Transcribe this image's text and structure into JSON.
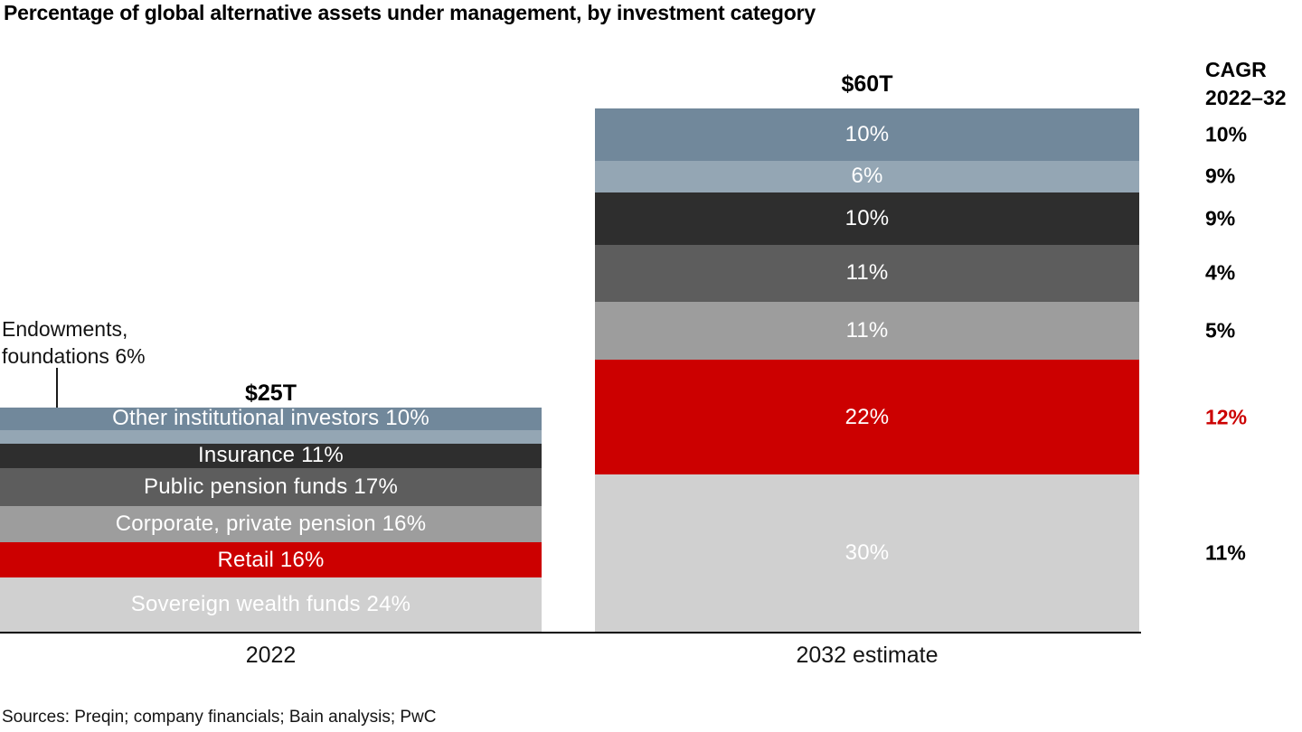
{
  "title": "Percentage of global alternative assets under management, by investment category",
  "sources": "Sources: Preqin; company financials; Bain analysis; PwC",
  "callout": {
    "line1": "Endowments,",
    "line2": "foundations 6%"
  },
  "cagr_header": {
    "line1": "CAGR",
    "line2": "2022–32"
  },
  "colors": {
    "slate": "#71889B",
    "light_slate": "#94A6B4",
    "charcoal": "#2E2E2E",
    "dark_gray": "#5D5D5D",
    "mid_gray": "#9D9D9D",
    "red": "#CC0000",
    "light_gray": "#D0D0D0",
    "axis": "#000000",
    "label_white": "#FFFFFF"
  },
  "chart_data": {
    "type": "bar",
    "subtype": "stacked-percentage-columns",
    "title": "Percentage of global alternative assets under management, by investment category",
    "categories": [
      "2022",
      "2032 estimate"
    ],
    "totals": [
      "$25T",
      "$60T"
    ],
    "ylim": [
      0,
      100
    ],
    "grid": false,
    "legend_position": "labels-inside-segments",
    "cagr_column_header": "CAGR 2022–32",
    "series": [
      {
        "name": "Other institutional investors",
        "color": "#71889B",
        "values": [
          10,
          10
        ],
        "label_2022": "Other institutional investors 10%",
        "label_2032": "10%",
        "cagr": "10%",
        "cagr_color": "#000000"
      },
      {
        "name": "Endowments, foundations",
        "color": "#94A6B4",
        "values": [
          6,
          6
        ],
        "label_2022": "",
        "label_2032": "6%",
        "cagr": "9%",
        "cagr_color": "#000000"
      },
      {
        "name": "Insurance",
        "color": "#2E2E2E",
        "values": [
          11,
          10
        ],
        "label_2022": "Insurance 11%",
        "label_2032": "10%",
        "cagr": "9%",
        "cagr_color": "#000000"
      },
      {
        "name": "Public pension funds",
        "color": "#5D5D5D",
        "values": [
          17,
          11
        ],
        "label_2022": "Public pension funds 17%",
        "label_2032": "11%",
        "cagr": "4%",
        "cagr_color": "#000000"
      },
      {
        "name": "Corporate, private pension",
        "color": "#9D9D9D",
        "values": [
          16,
          11
        ],
        "label_2022": "Corporate, private pension 16%",
        "label_2032": "11%",
        "cagr": "5%",
        "cagr_color": "#000000"
      },
      {
        "name": "Retail",
        "color": "#CC0000",
        "values": [
          16,
          22
        ],
        "label_2022": "Retail 16%",
        "label_2032": "22%",
        "cagr": "12%",
        "cagr_color": "#CC0000"
      },
      {
        "name": "Sovereign wealth funds",
        "color": "#D0D0D0",
        "values": [
          24,
          30
        ],
        "label_2022": "Sovereign wealth funds 24%",
        "label_2032": "30%",
        "cagr": "11%",
        "cagr_color": "#000000"
      }
    ]
  }
}
